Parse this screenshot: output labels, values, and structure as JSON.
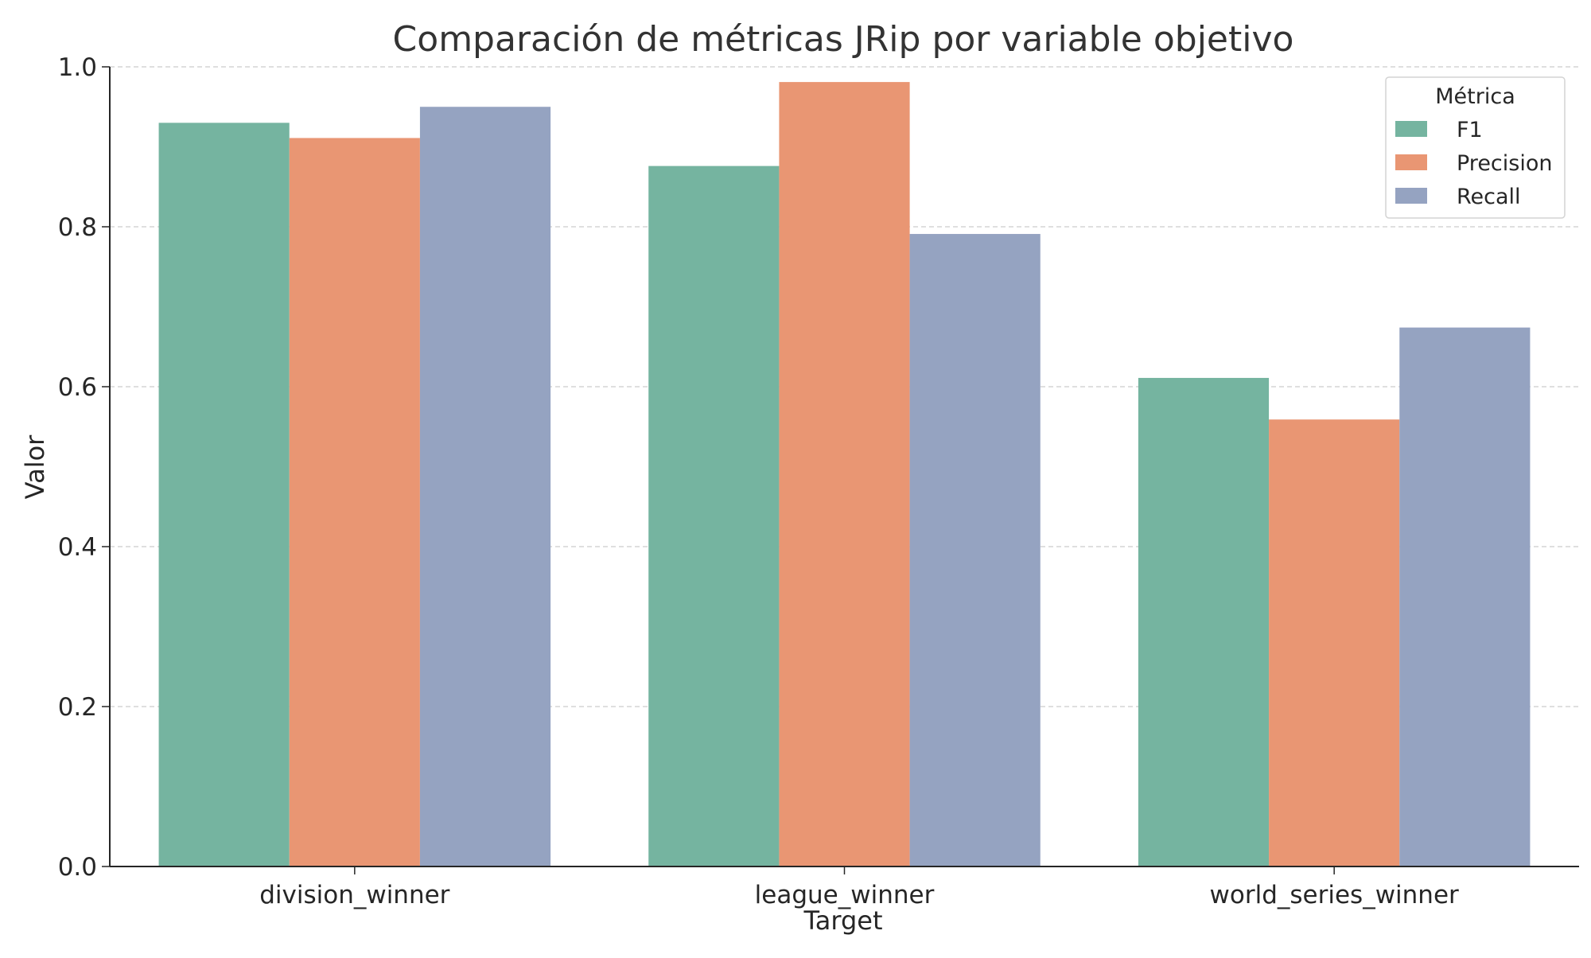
{
  "chart_data": {
    "type": "bar",
    "title": "Comparación de métricas JRip por variable objetivo",
    "xlabel": "Target",
    "ylabel": "Valor",
    "ylim": [
      0,
      1.0
    ],
    "yticks": [
      "0.0",
      "0.2",
      "0.4",
      "0.6",
      "0.8",
      "1.0"
    ],
    "grid": true,
    "categories": [
      "division_winner",
      "league_winner",
      "world_series_winner"
    ],
    "series": [
      {
        "name": "F1",
        "color": "#75b4a0",
        "values": [
          0.93,
          0.876,
          0.611
        ]
      },
      {
        "name": "Precision",
        "color": "#e99673",
        "values": [
          0.911,
          0.981,
          0.559
        ]
      },
      {
        "name": "Recall",
        "color": "#95a3c1",
        "values": [
          0.95,
          0.791,
          0.674
        ]
      }
    ],
    "legend": {
      "title": "Métrica",
      "position": "top-right"
    }
  }
}
